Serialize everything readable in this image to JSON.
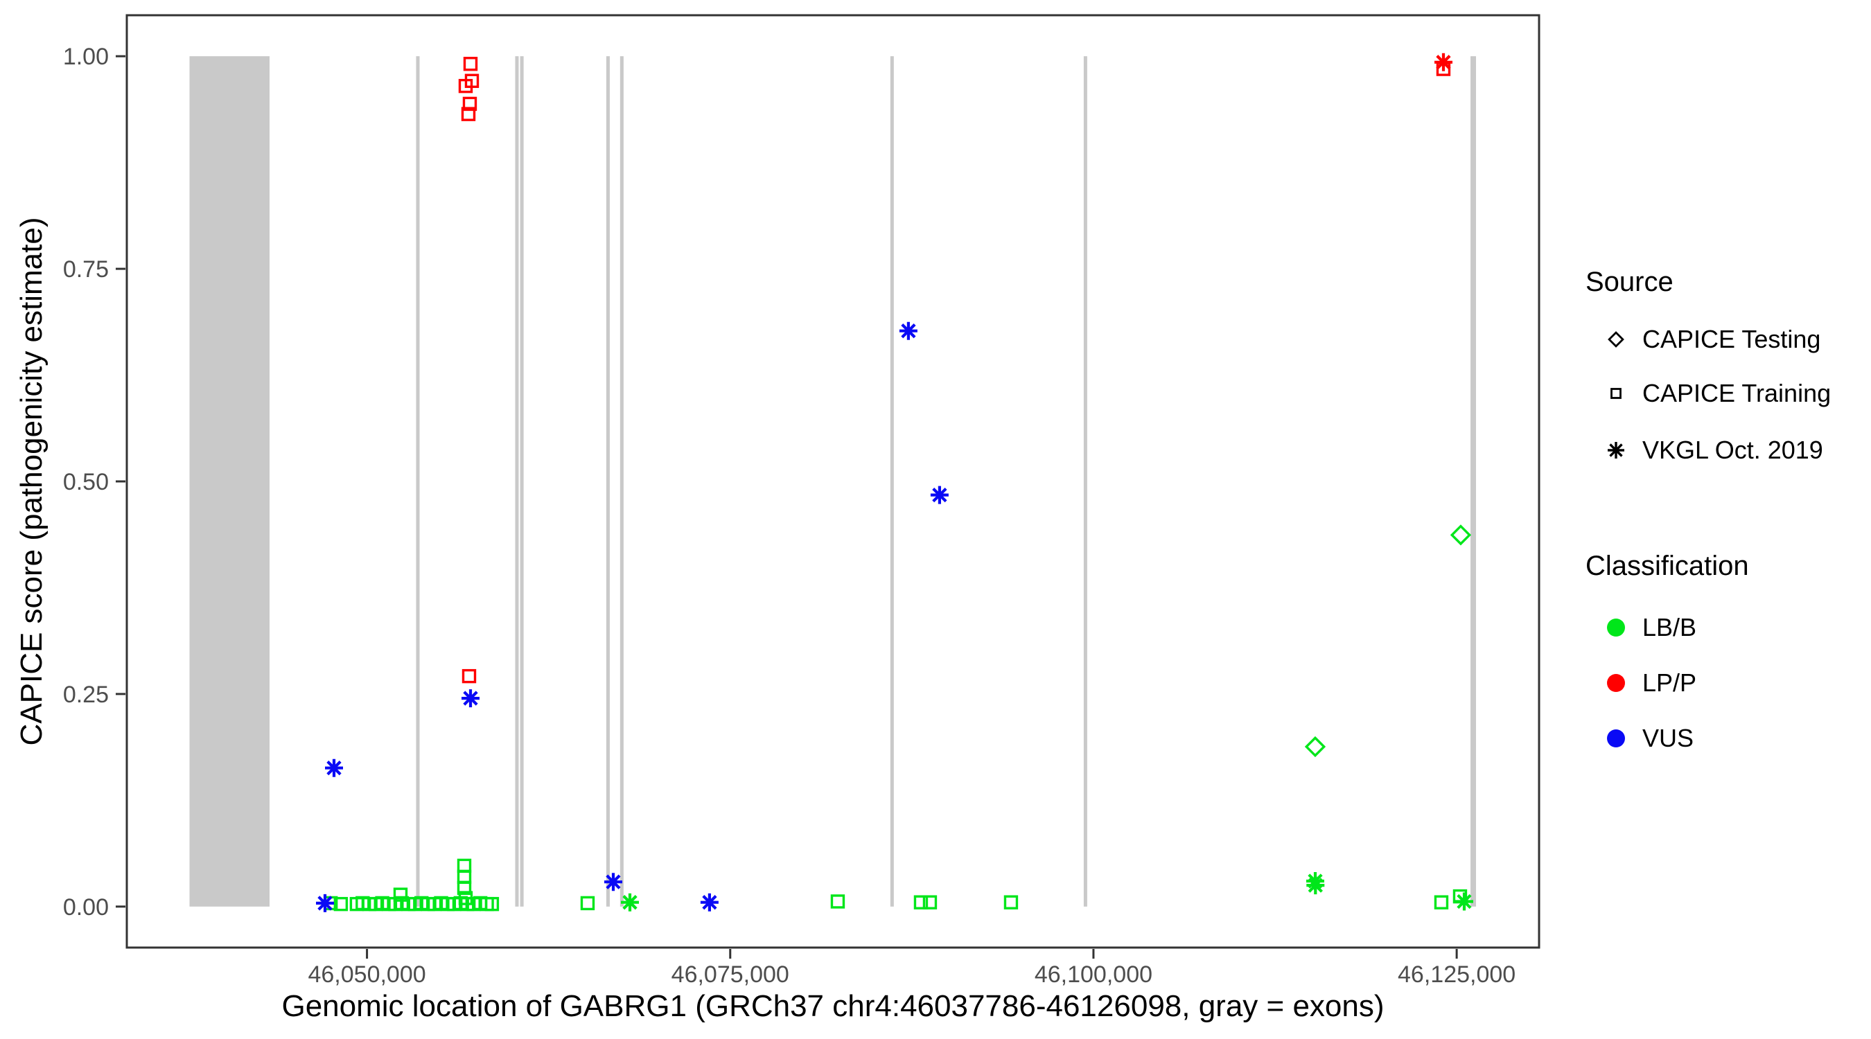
{
  "figure": {
    "x_axis_title": "Genomic location of GABRG1 (GRCh37 chr4:46037786-46126098, gray = exons)",
    "y_axis_title": "CAPICE score (pathogenicity estimate)"
  },
  "legend": {
    "source": {
      "title": "Source",
      "items": [
        {
          "label": "CAPICE Testing",
          "icon": "diamond-icon"
        },
        {
          "label": "CAPICE Training",
          "icon": "square-icon"
        },
        {
          "label": "VKGL Oct. 2019",
          "icon": "asterisk-icon"
        }
      ]
    },
    "classification": {
      "title": "Classification",
      "items": [
        {
          "label": "LB/B",
          "color": "#00E61A"
        },
        {
          "label": "LP/P",
          "color": "#FF0000"
        },
        {
          "label": "VUS",
          "color": "#0A0AF5"
        }
      ]
    }
  },
  "chart_data": {
    "type": "scatter",
    "title": "",
    "xlabel": "Genomic location of GABRG1 (GRCh37 chr4:46037786-46126098, gray = exons)",
    "ylabel": "CAPICE score (pathogenicity estimate)",
    "x_axis": {
      "domain": [
        46033470,
        46130670
      ],
      "ticks": [
        {
          "value": 46050000,
          "label": "46,050,000"
        },
        {
          "value": 46075000,
          "label": "46,075,000"
        },
        {
          "value": 46100000,
          "label": "46,100,000"
        },
        {
          "value": 46125000,
          "label": "46,125,000"
        }
      ]
    },
    "y_axis": {
      "domain": [
        -0.0482,
        1.0482
      ],
      "ticks": [
        {
          "value": 0.0,
          "label": "0.00"
        },
        {
          "value": 0.25,
          "label": "0.25"
        },
        {
          "value": 0.5,
          "label": "0.50"
        },
        {
          "value": 0.75,
          "label": "0.75"
        },
        {
          "value": 1.0,
          "label": "1.00"
        }
      ]
    },
    "colors": {
      "LB/B": "#00E61A",
      "LP/P": "#FF0000",
      "VUS": "#0A0AF5",
      "exon": "#C9C9C9",
      "panel_border": "#333333",
      "tick_label": "#4D4D4D"
    },
    "exons": [
      [
        46037786,
        46043295
      ],
      [
        46053380,
        46053620
      ],
      [
        46060200,
        46060440
      ],
      [
        46060540,
        46060780
      ],
      [
        46066470,
        46066710
      ],
      [
        46067420,
        46067660
      ],
      [
        46086020,
        46086260
      ],
      [
        46099330,
        46099570
      ],
      [
        46125950,
        46126330
      ]
    ],
    "points": [
      {
        "bp": 46047500,
        "score": 0.004,
        "source": "CAPICE Training",
        "class": "LB/B"
      },
      {
        "bp": 46048200,
        "score": 0.003,
        "source": "CAPICE Training",
        "class": "LB/B"
      },
      {
        "bp": 46049300,
        "score": 0.003,
        "source": "CAPICE Training",
        "class": "LB/B"
      },
      {
        "bp": 46049700,
        "score": 0.004,
        "source": "CAPICE Training",
        "class": "LB/B"
      },
      {
        "bp": 46050150,
        "score": 0.003,
        "source": "CAPICE Training",
        "class": "LB/B"
      },
      {
        "bp": 46050600,
        "score": 0.003,
        "source": "CAPICE Training",
        "class": "LB/B"
      },
      {
        "bp": 46051050,
        "score": 0.004,
        "source": "CAPICE Training",
        "class": "LB/B"
      },
      {
        "bp": 46051500,
        "score": 0.003,
        "source": "CAPICE Training",
        "class": "LB/B"
      },
      {
        "bp": 46051950,
        "score": 0.003,
        "source": "CAPICE Training",
        "class": "LB/B"
      },
      {
        "bp": 46052400,
        "score": 0.004,
        "source": "CAPICE Training",
        "class": "LB/B"
      },
      {
        "bp": 46052850,
        "score": 0.003,
        "source": "CAPICE Training",
        "class": "LB/B"
      },
      {
        "bp": 46053300,
        "score": 0.003,
        "source": "CAPICE Training",
        "class": "LB/B"
      },
      {
        "bp": 46053750,
        "score": 0.004,
        "source": "CAPICE Training",
        "class": "LB/B"
      },
      {
        "bp": 46054200,
        "score": 0.003,
        "source": "CAPICE Training",
        "class": "LB/B"
      },
      {
        "bp": 46054650,
        "score": 0.003,
        "source": "CAPICE Training",
        "class": "LB/B"
      },
      {
        "bp": 46055100,
        "score": 0.004,
        "source": "CAPICE Training",
        "class": "LB/B"
      },
      {
        "bp": 46055550,
        "score": 0.003,
        "source": "CAPICE Training",
        "class": "LB/B"
      },
      {
        "bp": 46056000,
        "score": 0.003,
        "source": "CAPICE Training",
        "class": "LB/B"
      },
      {
        "bp": 46056450,
        "score": 0.004,
        "source": "CAPICE Training",
        "class": "LB/B"
      },
      {
        "bp": 46056900,
        "score": 0.003,
        "source": "CAPICE Training",
        "class": "LB/B"
      },
      {
        "bp": 46057350,
        "score": 0.003,
        "source": "CAPICE Training",
        "class": "LB/B"
      },
      {
        "bp": 46057800,
        "score": 0.004,
        "source": "CAPICE Training",
        "class": "LB/B"
      },
      {
        "bp": 46058250,
        "score": 0.003,
        "source": "CAPICE Training",
        "class": "LB/B"
      },
      {
        "bp": 46058600,
        "score": 0.003,
        "source": "CAPICE Training",
        "class": "LB/B"
      },
      {
        "bp": 46052308,
        "score": 0.014,
        "source": "CAPICE Training",
        "class": "LB/B"
      },
      {
        "bp": 46056696,
        "score": 0.048,
        "source": "CAPICE Training",
        "class": "LB/B"
      },
      {
        "bp": 46056696,
        "score": 0.035,
        "source": "CAPICE Training",
        "class": "LB/B"
      },
      {
        "bp": 46056696,
        "score": 0.022,
        "source": "CAPICE Training",
        "class": "LB/B"
      },
      {
        "bp": 46056790,
        "score": 0.01,
        "source": "CAPICE Training",
        "class": "LB/B"
      },
      {
        "bp": 46065185,
        "score": 0.004,
        "source": "CAPICE Training",
        "class": "LB/B"
      },
      {
        "bp": 46082402,
        "score": 0.006,
        "source": "CAPICE Training",
        "class": "LB/B"
      },
      {
        "bp": 46088125,
        "score": 0.005,
        "source": "CAPICE Training",
        "class": "LB/B"
      },
      {
        "bp": 46088745,
        "score": 0.005,
        "source": "CAPICE Training",
        "class": "LB/B"
      },
      {
        "bp": 46094325,
        "score": 0.005,
        "source": "CAPICE Training",
        "class": "LB/B"
      },
      {
        "bp": 46123943,
        "score": 0.005,
        "source": "CAPICE Training",
        "class": "LB/B"
      },
      {
        "bp": 46125231,
        "score": 0.012,
        "source": "CAPICE Training",
        "class": "LB/B"
      },
      {
        "bp": 46068094,
        "score": 0.005,
        "source": "VKGL Oct. 2019",
        "class": "LB/B"
      },
      {
        "bp": 46115263,
        "score": 0.03,
        "source": "VKGL Oct. 2019",
        "class": "LB/B"
      },
      {
        "bp": 46115280,
        "score": 0.025,
        "source": "VKGL Oct. 2019",
        "class": "LB/B"
      },
      {
        "bp": 46125517,
        "score": 0.006,
        "source": "VKGL Oct. 2019",
        "class": "LB/B"
      },
      {
        "bp": 46125278,
        "score": 0.437,
        "source": "CAPICE Testing",
        "class": "LB/B"
      },
      {
        "bp": 46115263,
        "score": 0.188,
        "source": "CAPICE Testing",
        "class": "LB/B"
      },
      {
        "bp": 46057125,
        "score": 0.991,
        "source": "CAPICE Training",
        "class": "LP/P"
      },
      {
        "bp": 46057220,
        "score": 0.971,
        "source": "CAPICE Training",
        "class": "LP/P"
      },
      {
        "bp": 46056791,
        "score": 0.965,
        "source": "CAPICE Training",
        "class": "LP/P"
      },
      {
        "bp": 46057077,
        "score": 0.944,
        "source": "CAPICE Training",
        "class": "LP/P"
      },
      {
        "bp": 46056982,
        "score": 0.932,
        "source": "CAPICE Training",
        "class": "LP/P"
      },
      {
        "bp": 46057030,
        "score": 0.271,
        "source": "CAPICE Training",
        "class": "LP/P"
      },
      {
        "bp": 46124086,
        "score": 0.985,
        "source": "CAPICE Training",
        "class": "LP/P"
      },
      {
        "bp": 46124086,
        "score": 0.993,
        "source": "VKGL Oct. 2019",
        "class": "LP/P"
      },
      {
        "bp": 46047110,
        "score": 0.004,
        "source": "VKGL Oct. 2019",
        "class": "VUS"
      },
      {
        "bp": 46047730,
        "score": 0.163,
        "source": "VKGL Oct. 2019",
        "class": "VUS"
      },
      {
        "bp": 46057125,
        "score": 0.245,
        "source": "VKGL Oct. 2019",
        "class": "VUS"
      },
      {
        "bp": 46066949,
        "score": 0.029,
        "source": "VKGL Oct. 2019",
        "class": "VUS"
      },
      {
        "bp": 46073578,
        "score": 0.005,
        "source": "VKGL Oct. 2019",
        "class": "VUS"
      },
      {
        "bp": 46087266,
        "score": 0.677,
        "source": "VKGL Oct. 2019",
        "class": "VUS"
      },
      {
        "bp": 46089412,
        "score": 0.484,
        "source": "VKGL Oct. 2019",
        "class": "VUS"
      }
    ]
  }
}
